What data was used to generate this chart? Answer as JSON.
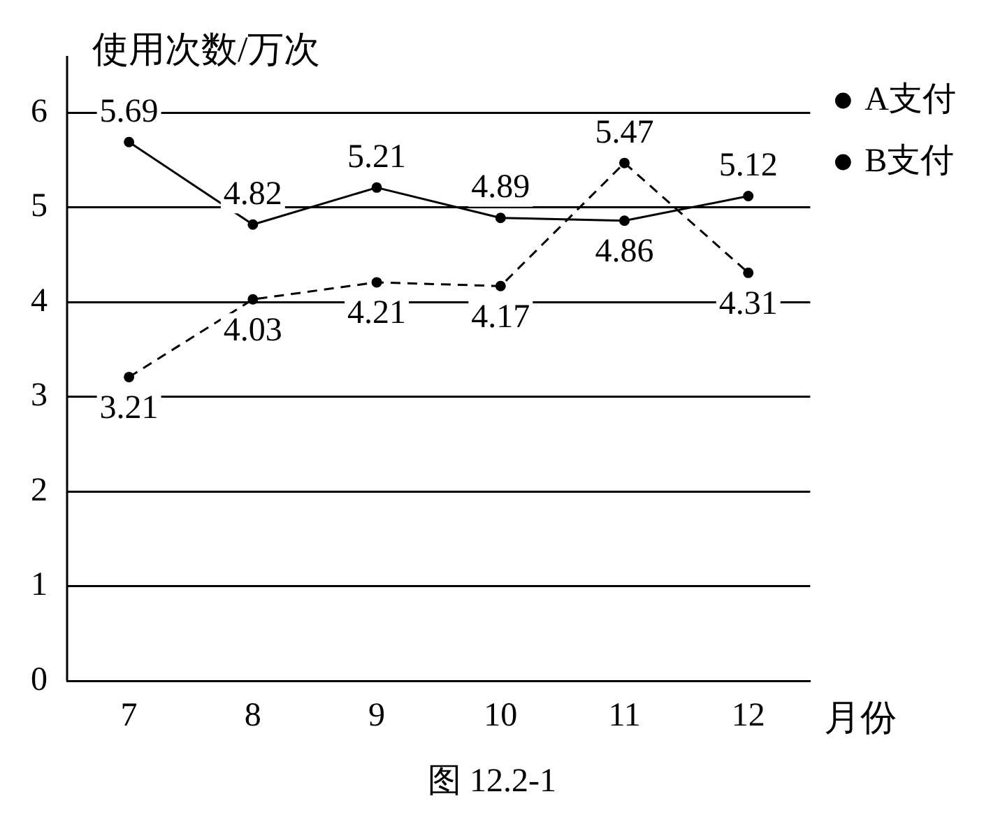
{
  "chart_data": {
    "type": "line",
    "ylabel": "使用次数/万次",
    "xlabel": "月份",
    "categories": [
      "7",
      "8",
      "9",
      "10",
      "11",
      "12"
    ],
    "series": [
      {
        "name": "A支付",
        "color": "#000000",
        "line_style": "solid",
        "values": [
          5.69,
          4.82,
          5.21,
          4.89,
          4.86,
          5.12
        ]
      },
      {
        "name": "B支付",
        "color": "#000000",
        "line_style": "dashed",
        "values": [
          3.21,
          4.03,
          4.21,
          4.17,
          5.47,
          4.31
        ]
      }
    ],
    "ylim": [
      0,
      6.6
    ],
    "yticks": [
      0,
      1,
      2,
      3,
      4,
      5,
      6
    ],
    "grid": "y",
    "legend": "top right",
    "marker": "circle",
    "data_labels": true,
    "annotations": [
      "图 12.2-1"
    ]
  }
}
